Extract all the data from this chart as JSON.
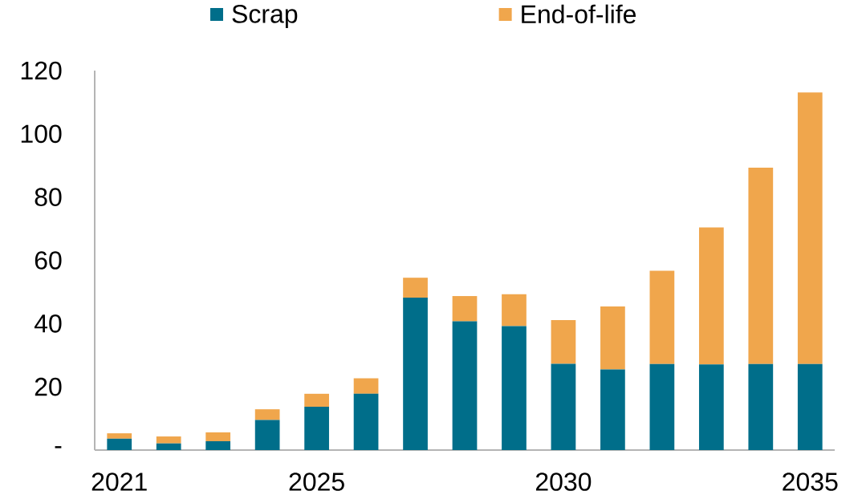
{
  "chart_data": {
    "type": "bar",
    "stacked": true,
    "categories": [
      "2021",
      null,
      null,
      null,
      "2025",
      null,
      null,
      null,
      null,
      "2030",
      null,
      null,
      null,
      null,
      "2035"
    ],
    "series": [
      {
        "name": "Scrap",
        "color": "#006e8a",
        "values": [
          3.6,
          2.1,
          2.8,
          9.5,
          13.7,
          17.8,
          48.2,
          40.7,
          39.2,
          27.3,
          25.5,
          27.2,
          27.1,
          27.2,
          27.2
        ]
      },
      {
        "name": "End-of-life",
        "color": "#f0a64c",
        "values": [
          1.7,
          2.2,
          2.8,
          3.4,
          4.1,
          4.9,
          6.3,
          8.0,
          10.1,
          13.8,
          19.9,
          29.5,
          43.3,
          62.1,
          85.9
        ]
      }
    ],
    "ylim": [
      0,
      120
    ],
    "yticks": [
      {
        "value": 0,
        "label": "-"
      },
      20,
      40,
      60,
      80,
      100,
      120
    ],
    "legend": "top"
  }
}
